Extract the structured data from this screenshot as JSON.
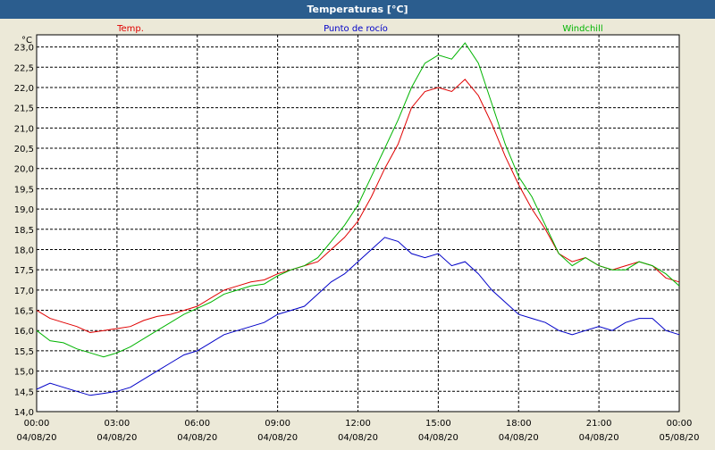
{
  "window": {
    "title": "Temperaturas [°C]"
  },
  "colors": {
    "titlebar": "#2B5D8E",
    "background": "#ECE9D8",
    "temp": "#E00000",
    "dew": "#0000C8",
    "windchill": "#00B400",
    "grid": "#000000"
  },
  "chart_data": {
    "type": "line",
    "title": "Temperaturas [°C]",
    "ylabel": "°C",
    "ylim": [
      14.0,
      23.3
    ],
    "xlim": [
      "04/08/20 00:00",
      "05/08/20 00:00"
    ],
    "grid": true,
    "legend": "top",
    "yticks": [
      "14,0",
      "14,5",
      "15,0",
      "15,5",
      "16,0",
      "16,5",
      "17,0",
      "17,5",
      "18,0",
      "18,5",
      "19,0",
      "19,5",
      "20,0",
      "20,5",
      "21,0",
      "21,5",
      "22,0",
      "22,5",
      "23,0"
    ],
    "xticks": [
      {
        "time": "00:00",
        "date": "04/08/20"
      },
      {
        "time": "03:00",
        "date": "04/08/20"
      },
      {
        "time": "06:00",
        "date": "04/08/20"
      },
      {
        "time": "09:00",
        "date": "04/08/20"
      },
      {
        "time": "12:00",
        "date": "04/08/20"
      },
      {
        "time": "15:00",
        "date": "04/08/20"
      },
      {
        "time": "18:00",
        "date": "04/08/20"
      },
      {
        "time": "21:00",
        "date": "04/08/20"
      },
      {
        "time": "00:00",
        "date": "05/08/20"
      }
    ],
    "x": [
      "00:00",
      "00:30",
      "01:00",
      "01:30",
      "02:00",
      "02:30",
      "03:00",
      "03:30",
      "04:00",
      "04:30",
      "05:00",
      "05:30",
      "06:00",
      "06:30",
      "07:00",
      "07:30",
      "08:00",
      "08:30",
      "09:00",
      "09:30",
      "10:00",
      "10:30",
      "11:00",
      "11:30",
      "12:00",
      "12:30",
      "13:00",
      "13:30",
      "14:00",
      "14:30",
      "15:00",
      "15:30",
      "16:00",
      "16:30",
      "17:00",
      "17:30",
      "18:00",
      "18:30",
      "19:00",
      "19:30",
      "20:00",
      "20:30",
      "21:00",
      "21:30",
      "22:00",
      "22:30",
      "23:00",
      "23:30",
      "24:00"
    ],
    "series": [
      {
        "name": "Temp.",
        "color": "#E00000",
        "values": [
          16.5,
          16.3,
          16.2,
          16.1,
          15.95,
          16.0,
          16.05,
          16.1,
          16.25,
          16.35,
          16.4,
          16.5,
          16.6,
          16.8,
          17.0,
          17.1,
          17.2,
          17.25,
          17.4,
          17.5,
          17.6,
          17.7,
          18.0,
          18.3,
          18.7,
          19.3,
          20.0,
          20.6,
          21.5,
          21.9,
          22.0,
          21.9,
          22.2,
          21.8,
          21.1,
          20.3,
          19.6,
          19.0,
          18.5,
          17.9,
          17.7,
          17.8,
          17.6,
          17.5,
          17.6,
          17.7,
          17.6,
          17.3,
          17.2
        ]
      },
      {
        "name": "Punto de rocío",
        "color": "#0000C8",
        "values": [
          14.55,
          14.7,
          14.6,
          14.5,
          14.4,
          14.45,
          14.5,
          14.6,
          14.8,
          15.0,
          15.2,
          15.4,
          15.5,
          15.7,
          15.9,
          16.0,
          16.1,
          16.2,
          16.4,
          16.5,
          16.6,
          16.9,
          17.2,
          17.4,
          17.7,
          18.0,
          18.3,
          18.2,
          17.9,
          17.8,
          17.9,
          17.6,
          17.7,
          17.4,
          17.0,
          16.7,
          16.4,
          16.3,
          16.2,
          16.0,
          15.9,
          16.0,
          16.1,
          16.0,
          16.2,
          16.3,
          16.3,
          16.0,
          15.9
        ]
      },
      {
        "name": "Windchill",
        "color": "#00B400",
        "values": [
          16.0,
          15.75,
          15.7,
          15.55,
          15.45,
          15.35,
          15.45,
          15.6,
          15.8,
          16.0,
          16.2,
          16.4,
          16.55,
          16.7,
          16.9,
          17.0,
          17.1,
          17.15,
          17.35,
          17.5,
          17.6,
          17.8,
          18.2,
          18.6,
          19.1,
          19.8,
          20.5,
          21.2,
          22.0,
          22.6,
          22.8,
          22.7,
          23.1,
          22.6,
          21.6,
          20.6,
          19.8,
          19.3,
          18.6,
          17.9,
          17.6,
          17.8,
          17.6,
          17.5,
          17.5,
          17.7,
          17.6,
          17.4,
          17.1
        ]
      }
    ]
  }
}
